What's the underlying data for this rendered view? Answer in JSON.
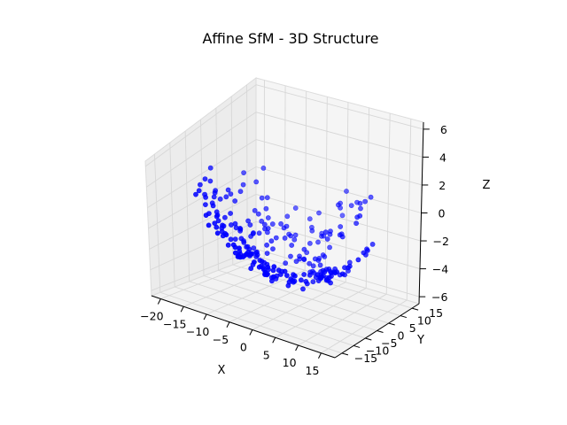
{
  "chart_data": {
    "type": "scatter",
    "title": "Affine SfM - 3D Structure",
    "xlabel": "X",
    "ylabel": "Y",
    "zlabel": "Z",
    "xticks": [
      -20,
      -15,
      -10,
      -5,
      0,
      5,
      10,
      15
    ],
    "yticks": [
      -15,
      -10,
      -5,
      0,
      5,
      10,
      15
    ],
    "zticks": [
      -6,
      -4,
      -2,
      0,
      2,
      4,
      6
    ],
    "xlim": [
      -22,
      18
    ],
    "ylim": [
      -18,
      18
    ],
    "zlim": [
      -6.5,
      6.5
    ],
    "grid": true,
    "marker_color": "#0000ff",
    "point_count": 256
  }
}
